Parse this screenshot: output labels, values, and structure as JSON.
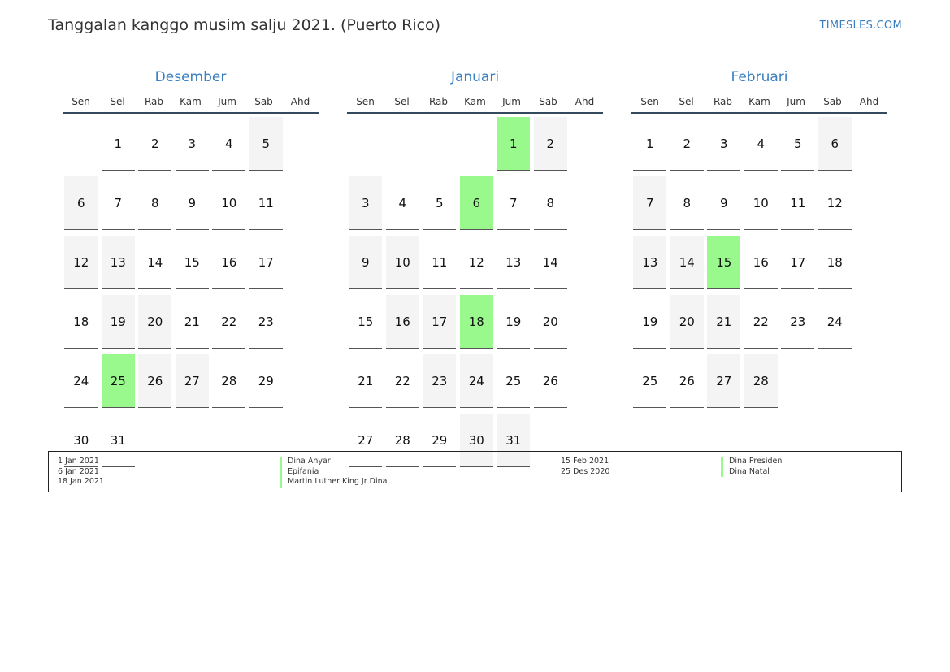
{
  "header": {
    "title": "Tanggalan kanggo musim salju 2021. (Puerto Rico)",
    "brand": "TIMESLES.COM"
  },
  "weekdays": [
    "Sen",
    "Sel",
    "Rab",
    "Kam",
    "Jum",
    "Sab",
    "Ahd"
  ],
  "months": [
    {
      "name": "Desember",
      "start_offset": 1,
      "days": 31,
      "holidays": [
        25
      ]
    },
    {
      "name": "Januari",
      "start_offset": 4,
      "days": 31,
      "holidays": [
        1,
        6,
        18
      ]
    },
    {
      "name": "Februari",
      "start_offset": 0,
      "days": 28,
      "holidays": [
        15
      ]
    }
  ],
  "legend": [
    {
      "date": "1 Jan 2021",
      "name": "Dina Anyar"
    },
    {
      "date": "6 Jan 2021",
      "name": "Epifania"
    },
    {
      "date": "18 Jan 2021",
      "name": "Martin Luther King Jr Dina"
    },
    {
      "date": "15 Feb 2021",
      "name": "Dina Presiden"
    },
    {
      "date": "25 Des 2020",
      "name": "Dina Natal"
    }
  ],
  "colors": {
    "holiday": "#99f98c",
    "weekend": "#f4f4f4",
    "accent": "#3a7fc0"
  }
}
